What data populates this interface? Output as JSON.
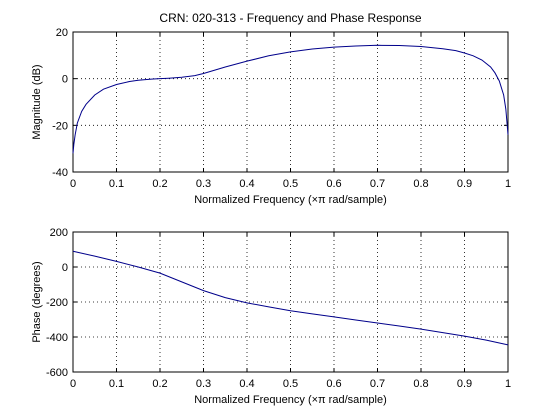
{
  "chart_data": [
    {
      "type": "line",
      "title": "CRN: 020-313 - Frequency and Phase Response",
      "xlabel": "Normalized Frequency  (×π rad/sample)",
      "ylabel": "Magnitude (dB)",
      "xlim": [
        0,
        1
      ],
      "ylim": [
        -40,
        20
      ],
      "xticks": [
        0,
        0.1,
        0.2,
        0.3,
        0.4,
        0.5,
        0.6,
        0.7,
        0.8,
        0.9,
        1
      ],
      "xtick_labels": [
        "0",
        "0.1",
        "0.2",
        "0.3",
        "0.4",
        "0.5",
        "0.6",
        "0.7",
        "0.8",
        "0.9",
        "1"
      ],
      "yticks": [
        -40,
        -20,
        0,
        20
      ],
      "ytick_labels": [
        "-40",
        "-20",
        "0",
        "20"
      ],
      "grid": true,
      "color": "#00008b",
      "x": [
        0,
        0.002,
        0.005,
        0.01,
        0.02,
        0.03,
        0.05,
        0.07,
        0.1,
        0.13,
        0.15,
        0.18,
        0.2,
        0.22,
        0.25,
        0.28,
        0.3,
        0.35,
        0.4,
        0.45,
        0.5,
        0.55,
        0.6,
        0.65,
        0.7,
        0.75,
        0.8,
        0.85,
        0.88,
        0.9,
        0.92,
        0.94,
        0.96,
        0.97,
        0.98,
        0.99,
        0.995,
        1
      ],
      "y": [
        -32,
        -28,
        -24,
        -19,
        -14,
        -11,
        -7,
        -4.5,
        -2.5,
        -1.2,
        -0.7,
        -0.2,
        0,
        0.2,
        0.6,
        1.3,
        2.2,
        5,
        7.5,
        9.8,
        11.5,
        12.7,
        13.5,
        14,
        14.3,
        14.2,
        13.8,
        12.8,
        12,
        11,
        9.8,
        8,
        5,
        2.5,
        -1,
        -7,
        -13,
        -24
      ]
    },
    {
      "type": "line",
      "title": "",
      "xlabel": "Normalized Frequency  (×π rad/sample)",
      "ylabel": "Phase (degrees)",
      "xlim": [
        0,
        1
      ],
      "ylim": [
        -600,
        200
      ],
      "xticks": [
        0,
        0.1,
        0.2,
        0.3,
        0.4,
        0.5,
        0.6,
        0.7,
        0.8,
        0.9,
        1
      ],
      "xtick_labels": [
        "0",
        "0.1",
        "0.2",
        "0.3",
        "0.4",
        "0.5",
        "0.6",
        "0.7",
        "0.8",
        "0.9",
        "1"
      ],
      "yticks": [
        -600,
        -400,
        -200,
        0,
        200
      ],
      "ytick_labels": [
        "-600",
        "-400",
        "-200",
        "0",
        "200"
      ],
      "grid": true,
      "color": "#00008b",
      "x": [
        0,
        0.05,
        0.1,
        0.15,
        0.2,
        0.25,
        0.3,
        0.35,
        0.4,
        0.45,
        0.5,
        0.55,
        0.6,
        0.65,
        0.7,
        0.75,
        0.8,
        0.85,
        0.9,
        0.95,
        1
      ],
      "y": [
        90,
        62,
        32,
        0,
        -35,
        -85,
        -135,
        -175,
        -205,
        -228,
        -250,
        -268,
        -285,
        -303,
        -320,
        -337,
        -355,
        -375,
        -395,
        -418,
        -445
      ]
    }
  ]
}
